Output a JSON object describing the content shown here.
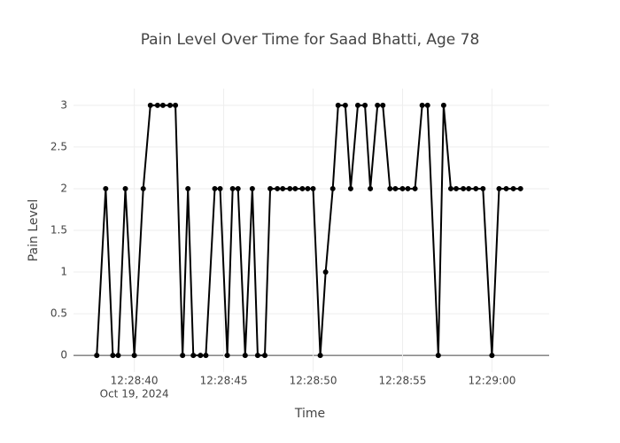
{
  "chart_data": {
    "type": "line",
    "title": "Pain Level Over Time for Saad Bhatti, Age 78",
    "x_label": "Time",
    "y_label": "Pain Level",
    "color": "#000000",
    "x": [
      "2024-10-19T12:28:37.9",
      "2024-10-19T12:28:38.4",
      "2024-10-19T12:28:38.8",
      "2024-10-19T12:28:39.1",
      "2024-10-19T12:28:39.5",
      "2024-10-19T12:28:40.0",
      "2024-10-19T12:28:40.5",
      "2024-10-19T12:28:40.9",
      "2024-10-19T12:28:41.3",
      "2024-10-19T12:28:41.6",
      "2024-10-19T12:28:42.0",
      "2024-10-19T12:28:42.3",
      "2024-10-19T12:28:42.7",
      "2024-10-19T12:28:43.0",
      "2024-10-19T12:28:43.3",
      "2024-10-19T12:28:43.7",
      "2024-10-19T12:28:44.0",
      "2024-10-19T12:28:44.5",
      "2024-10-19T12:28:44.8",
      "2024-10-19T12:28:45.2",
      "2024-10-19T12:28:45.5",
      "2024-10-19T12:28:45.8",
      "2024-10-19T12:28:46.2",
      "2024-10-19T12:28:46.6",
      "2024-10-19T12:28:46.9",
      "2024-10-19T12:28:47.3",
      "2024-10-19T12:28:47.6",
      "2024-10-19T12:28:48.0",
      "2024-10-19T12:28:48.3",
      "2024-10-19T12:28:48.7",
      "2024-10-19T12:28:49.0",
      "2024-10-19T12:28:49.4",
      "2024-10-19T12:28:49.7",
      "2024-10-19T12:28:50.0",
      "2024-10-19T12:28:50.4",
      "2024-10-19T12:28:50.7",
      "2024-10-19T12:28:51.1",
      "2024-10-19T12:28:51.4",
      "2024-10-19T12:28:51.8",
      "2024-10-19T12:28:52.1",
      "2024-10-19T12:28:52.5",
      "2024-10-19T12:28:52.9",
      "2024-10-19T12:28:53.2",
      "2024-10-19T12:28:53.6",
      "2024-10-19T12:28:53.9",
      "2024-10-19T12:28:54.3",
      "2024-10-19T12:28:54.6",
      "2024-10-19T12:28:55.0",
      "2024-10-19T12:28:55.3",
      "2024-10-19T12:28:55.7",
      "2024-10-19T12:28:56.1",
      "2024-10-19T12:28:56.4",
      "2024-10-19T12:28:57.0",
      "2024-10-19T12:28:57.3",
      "2024-10-19T12:28:57.7",
      "2024-10-19T12:28:58.0",
      "2024-10-19T12:28:58.4",
      "2024-10-19T12:28:58.7",
      "2024-10-19T12:28:59.1",
      "2024-10-19T12:28:59.5",
      "2024-10-19T12:29:00.0",
      "2024-10-19T12:29:00.4",
      "2024-10-19T12:29:00.8",
      "2024-10-19T12:29:01.2",
      "2024-10-19T12:29:01.6"
    ],
    "values": [
      0,
      2,
      0,
      0,
      2,
      0,
      2,
      3,
      3,
      3,
      3,
      3,
      0,
      2,
      0,
      0,
      0,
      2,
      2,
      0,
      2,
      2,
      0,
      2,
      0,
      0,
      2,
      2,
      2,
      2,
      2,
      2,
      2,
      2,
      0,
      1,
      2,
      3,
      3,
      2,
      3,
      3,
      2,
      3,
      3,
      2,
      2,
      2,
      2,
      2,
      3,
      3,
      0,
      3,
      2,
      2,
      2,
      2,
      2,
      2,
      0,
      2,
      2,
      2,
      2
    ],
    "xlim": [
      "2024-10-19T12:28:36.6",
      "2024-10-19T12:29:03.2"
    ],
    "xticks": [
      {
        "value": "2024-10-19T12:28:40",
        "label": "12:28:40"
      },
      {
        "value": "2024-10-19T12:28:45",
        "label": "12:28:45"
      },
      {
        "value": "2024-10-19T12:28:50",
        "label": "12:28:50"
      },
      {
        "value": "2024-10-19T12:28:55",
        "label": "12:28:55"
      },
      {
        "value": "2024-10-19T12:29:00",
        "label": "12:29:00"
      }
    ],
    "xtick_date": "Oct 19, 2024",
    "ylim": [
      -0.2,
      3.2
    ],
    "yticks": [
      0,
      0.5,
      1,
      1.5,
      2,
      2.5,
      3
    ],
    "grid": true
  }
}
